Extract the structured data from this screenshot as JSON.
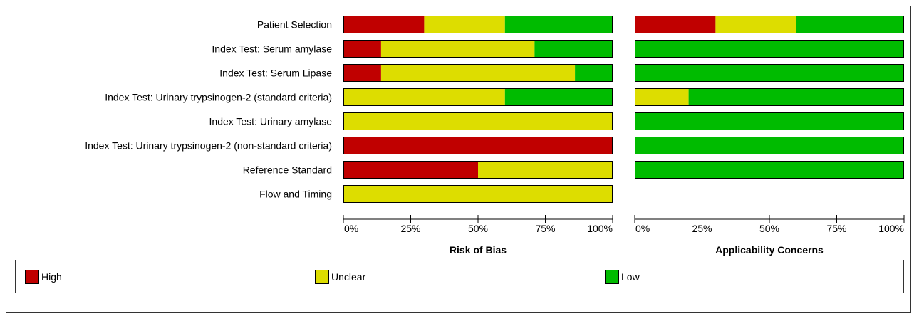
{
  "chart_data": {
    "type": "bar",
    "stacked": "100%",
    "orientation": "horizontal",
    "categories": [
      "Patient Selection",
      "Index Test: Serum amylase",
      "Index Test: Serum Lipase",
      "Index Test: Urinary trypsinogen-2 (standard criteria)",
      "Index Test: Urinary amylase",
      "Index Test: Urinary trypsinogen-2 (non-standard criteria)",
      "Reference Standard",
      "Flow and Timing"
    ],
    "ticks": [
      "0%",
      "25%",
      "50%",
      "75%",
      "100%"
    ],
    "xlim": [
      0,
      100
    ],
    "legend_position": "bottom",
    "panels": [
      {
        "xlabel": "Risk of Bias",
        "series": [
          {
            "name": "High",
            "color": "#c00000",
            "values": [
              30,
              14,
              14,
              0,
              0,
              100,
              50,
              0
            ]
          },
          {
            "name": "Unclear",
            "color": "#dddd00",
            "values": [
              30,
              57,
              72,
              60,
              100,
              0,
              50,
              100
            ]
          },
          {
            "name": "Low",
            "color": "#00bb00",
            "values": [
              40,
              29,
              14,
              40,
              0,
              0,
              0,
              0
            ]
          }
        ]
      },
      {
        "xlabel": "Applicability Concerns",
        "series": [
          {
            "name": "High",
            "color": "#c00000",
            "values": [
              30,
              0,
              0,
              0,
              0,
              0,
              0,
              null
            ]
          },
          {
            "name": "Unclear",
            "color": "#dddd00",
            "values": [
              30,
              0,
              0,
              20,
              0,
              0,
              0,
              null
            ]
          },
          {
            "name": "Low",
            "color": "#00bb00",
            "values": [
              40,
              100,
              100,
              80,
              100,
              100,
              100,
              null
            ]
          }
        ]
      }
    ]
  },
  "legend": [
    {
      "label": "High",
      "color": "#c00000"
    },
    {
      "label": "Unclear",
      "color": "#dddd00"
    },
    {
      "label": "Low",
      "color": "#00bb00"
    }
  ]
}
